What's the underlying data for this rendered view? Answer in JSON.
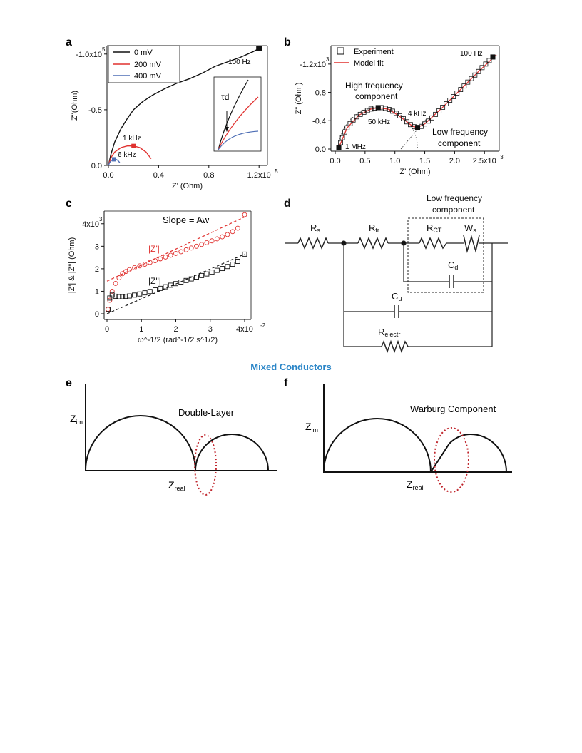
{
  "figure": {
    "panel_labels": [
      "a",
      "b",
      "c",
      "d",
      "e",
      "f"
    ],
    "mixed_title": "Mixed Conductors",
    "colors": {
      "black": "#111111",
      "red": "#e0312f",
      "blue": "#4f6fb5",
      "title_blue": "#2a85c7",
      "gray": "#555555"
    }
  },
  "chart_data": [
    {
      "panel": "a",
      "type": "line",
      "xlabel": "Z' (Ohm)",
      "ylabel": "Z''(Ohm)",
      "xlim": [
        0,
        125000
      ],
      "ylim": [
        0,
        -105000
      ],
      "x_ticks": [
        "0.0",
        "0.4",
        "0.8",
        "1.2x10",
        "5"
      ],
      "x_tick_values": [
        0,
        40000,
        80000,
        120000
      ],
      "y_ticks": [
        "0.0",
        "-0.5",
        "-1.0x10",
        "5"
      ],
      "y_tick_values": [
        0,
        -50000,
        -100000
      ],
      "legend": [
        "0 mV",
        "200 mV",
        "400 mV"
      ],
      "annotations": [
        "100 Hz",
        "1 kHz",
        "6 kHz"
      ],
      "inset_label": "τd",
      "series": [
        {
          "name": "0 mV",
          "color": "#111111",
          "x": [
            0,
            2000,
            5000,
            10000,
            15000,
            20000,
            27000,
            35000,
            45000,
            55000,
            65000,
            75000,
            85000,
            95000,
            105000,
            115000,
            120000
          ],
          "y": [
            0,
            -10000,
            -21000,
            -33000,
            -42000,
            -50000,
            -57000,
            -63000,
            -69000,
            -74000,
            -78000,
            -83000,
            -89000,
            -93000,
            -97000,
            -102000,
            -105000
          ]
        },
        {
          "name": "200 mV",
          "color": "#e0312f",
          "x": [
            0,
            2000,
            5000,
            10000,
            15000,
            20000,
            25000,
            30000,
            34000
          ],
          "y": [
            0,
            -7000,
            -12000,
            -16000,
            -17500,
            -17500,
            -16000,
            -12000,
            -6000
          ]
        },
        {
          "name": "400 mV",
          "color": "#4f6fb5",
          "x": [
            0,
            1000,
            2500,
            4500,
            6000,
            7500,
            9000
          ],
          "y": [
            0,
            -2500,
            -4500,
            -5500,
            -5500,
            -4500,
            -2500
          ]
        }
      ]
    },
    {
      "panel": "b",
      "type": "scatter",
      "xlabel": "Z' (Ohm)",
      "ylabel": "Z\" (Ohm)",
      "xlim": [
        0,
        2700
      ],
      "ylim": [
        0,
        -1400
      ],
      "x_ticks": [
        "0.0",
        "0.5",
        "1.0",
        "1.5",
        "2.0",
        "2.5x10",
        "3"
      ],
      "x_tick_values": [
        0,
        500,
        1000,
        1500,
        2000,
        2500
      ],
      "y_ticks": [
        "0.0",
        "-0.4",
        "-0.8",
        "-1.2x10",
        "3"
      ],
      "y_tick_values": [
        0,
        -400,
        -800,
        -1200
      ],
      "legend": [
        "Experiment",
        "Model fit"
      ],
      "annotations": [
        "High frequency",
        "component",
        "Low frequency",
        "component",
        "100 Hz",
        "50 kHz",
        "4 kHz",
        "1 MHz"
      ],
      "series": [
        {
          "name": "Experiment",
          "color": "#111111",
          "x": [
            60,
            90,
            120,
            160,
            200,
            250,
            300,
            360,
            420,
            480,
            540,
            600,
            660,
            720,
            780,
            840,
            900,
            960,
            1020,
            1080,
            1140,
            1200,
            1260,
            1320,
            1380,
            1440,
            1500,
            1560,
            1620,
            1680,
            1740,
            1800,
            1860,
            1920,
            1980,
            2040,
            2100,
            2160,
            2220,
            2280,
            2340,
            2400,
            2460,
            2520,
            2580,
            2640
          ],
          "y": [
            -20,
            -90,
            -160,
            -240,
            -300,
            -360,
            -410,
            -455,
            -490,
            -520,
            -545,
            -565,
            -578,
            -585,
            -585,
            -575,
            -560,
            -535,
            -505,
            -470,
            -430,
            -385,
            -345,
            -315,
            -305,
            -320,
            -355,
            -395,
            -440,
            -490,
            -540,
            -590,
            -640,
            -690,
            -740,
            -790,
            -840,
            -890,
            -945,
            -995,
            -1045,
            -1095,
            -1150,
            -1200,
            -1250,
            -1300
          ]
        },
        {
          "name": "Model fit",
          "color": "#e0312f",
          "x": [
            60,
            200,
            400,
            600,
            720,
            900,
            1100,
            1300,
            1380,
            1500,
            1800,
            2100,
            2400,
            2700
          ],
          "y": [
            -20,
            -300,
            -480,
            -565,
            -585,
            -560,
            -450,
            -320,
            -305,
            -355,
            -590,
            -840,
            -1095,
            -1330
          ]
        }
      ]
    },
    {
      "panel": "c",
      "type": "scatter",
      "title": "Slope = Aw",
      "xlabel": "ω^-1/2 (rad^-1/2 s^1/2)",
      "ylabel": "|Z'| & |Z\"| (Ohm)",
      "xlim": [
        0,
        0.04
      ],
      "ylim": [
        0,
        4500
      ],
      "x_ticks": [
        "0",
        "1",
        "2",
        "3",
        "4x10",
        "-2"
      ],
      "x_tick_values": [
        0,
        0.01,
        0.02,
        0.03,
        0.04
      ],
      "y_ticks": [
        "0",
        "1",
        "2",
        "3",
        "4x10",
        "3"
      ],
      "y_tick_values": [
        0,
        1000,
        2000,
        3000,
        4000
      ],
      "series_labels": [
        "|Z'|",
        "|Z\"|"
      ],
      "series": [
        {
          "name": "|Z'|",
          "color": "#e0312f",
          "x": [
            0.0003,
            0.0008,
            0.0015,
            0.0025,
            0.0035,
            0.0045,
            0.0055,
            0.0065,
            0.008,
            0.0095,
            0.011,
            0.0125,
            0.014,
            0.0155,
            0.017,
            0.0185,
            0.02,
            0.0215,
            0.023,
            0.0245,
            0.026,
            0.0275,
            0.029,
            0.0305,
            0.032,
            0.0335,
            0.035,
            0.0365,
            0.038,
            0.04
          ],
          "y": [
            200,
            600,
            1000,
            1350,
            1600,
            1780,
            1880,
            1960,
            2050,
            2130,
            2200,
            2280,
            2360,
            2440,
            2520,
            2600,
            2680,
            2760,
            2840,
            2920,
            3000,
            3080,
            3160,
            3240,
            3330,
            3420,
            3520,
            3650,
            3800,
            4400
          ]
        },
        {
          "name": "|Z\"|",
          "color": "#111111",
          "x": [
            0.0003,
            0.0008,
            0.0015,
            0.0025,
            0.0035,
            0.0045,
            0.0055,
            0.0065,
            0.008,
            0.0095,
            0.011,
            0.0125,
            0.014,
            0.0155,
            0.017,
            0.0185,
            0.02,
            0.0215,
            0.023,
            0.0245,
            0.026,
            0.0275,
            0.029,
            0.0305,
            0.032,
            0.0335,
            0.035,
            0.0365,
            0.038,
            0.04
          ],
          "y": [
            200,
            700,
            830,
            780,
            760,
            760,
            770,
            790,
            830,
            880,
            930,
            990,
            1060,
            1130,
            1200,
            1270,
            1340,
            1410,
            1480,
            1550,
            1630,
            1700,
            1770,
            1850,
            1930,
            2010,
            2100,
            2200,
            2330,
            2650
          ]
        }
      ],
      "fit_lines": [
        {
          "color": "#e0312f",
          "x": [
            0,
            0.04
          ],
          "y": [
            1450,
            4300
          ]
        },
        {
          "color": "#111111",
          "x": [
            0,
            0.04
          ],
          "y": [
            0,
            2650
          ]
        }
      ]
    }
  ],
  "circuit": {
    "labels": {
      "rs": "R",
      "rs_sub": "s",
      "rtr": "R",
      "rtr_sub": "tr",
      "rct": "R",
      "rct_sub": "CT",
      "ws": "W",
      "ws_sub": "s",
      "cdl": "C",
      "cdl_sub": "dl",
      "cmu": "C",
      "cmu_sub": "μ",
      "relectr": "R",
      "relectr_sub": "electr"
    },
    "box_label_1": "Low frequency",
    "box_label_2": "component"
  },
  "schematics": {
    "e": {
      "title": "Double-Layer",
      "y_axis": "Z",
      "y_sub": "im",
      "x_axis": "Z",
      "x_sub": "real"
    },
    "f": {
      "title": "Warburg Component",
      "y_axis": "Z",
      "y_sub": "im",
      "x_axis": "Z",
      "x_sub": "real"
    }
  }
}
